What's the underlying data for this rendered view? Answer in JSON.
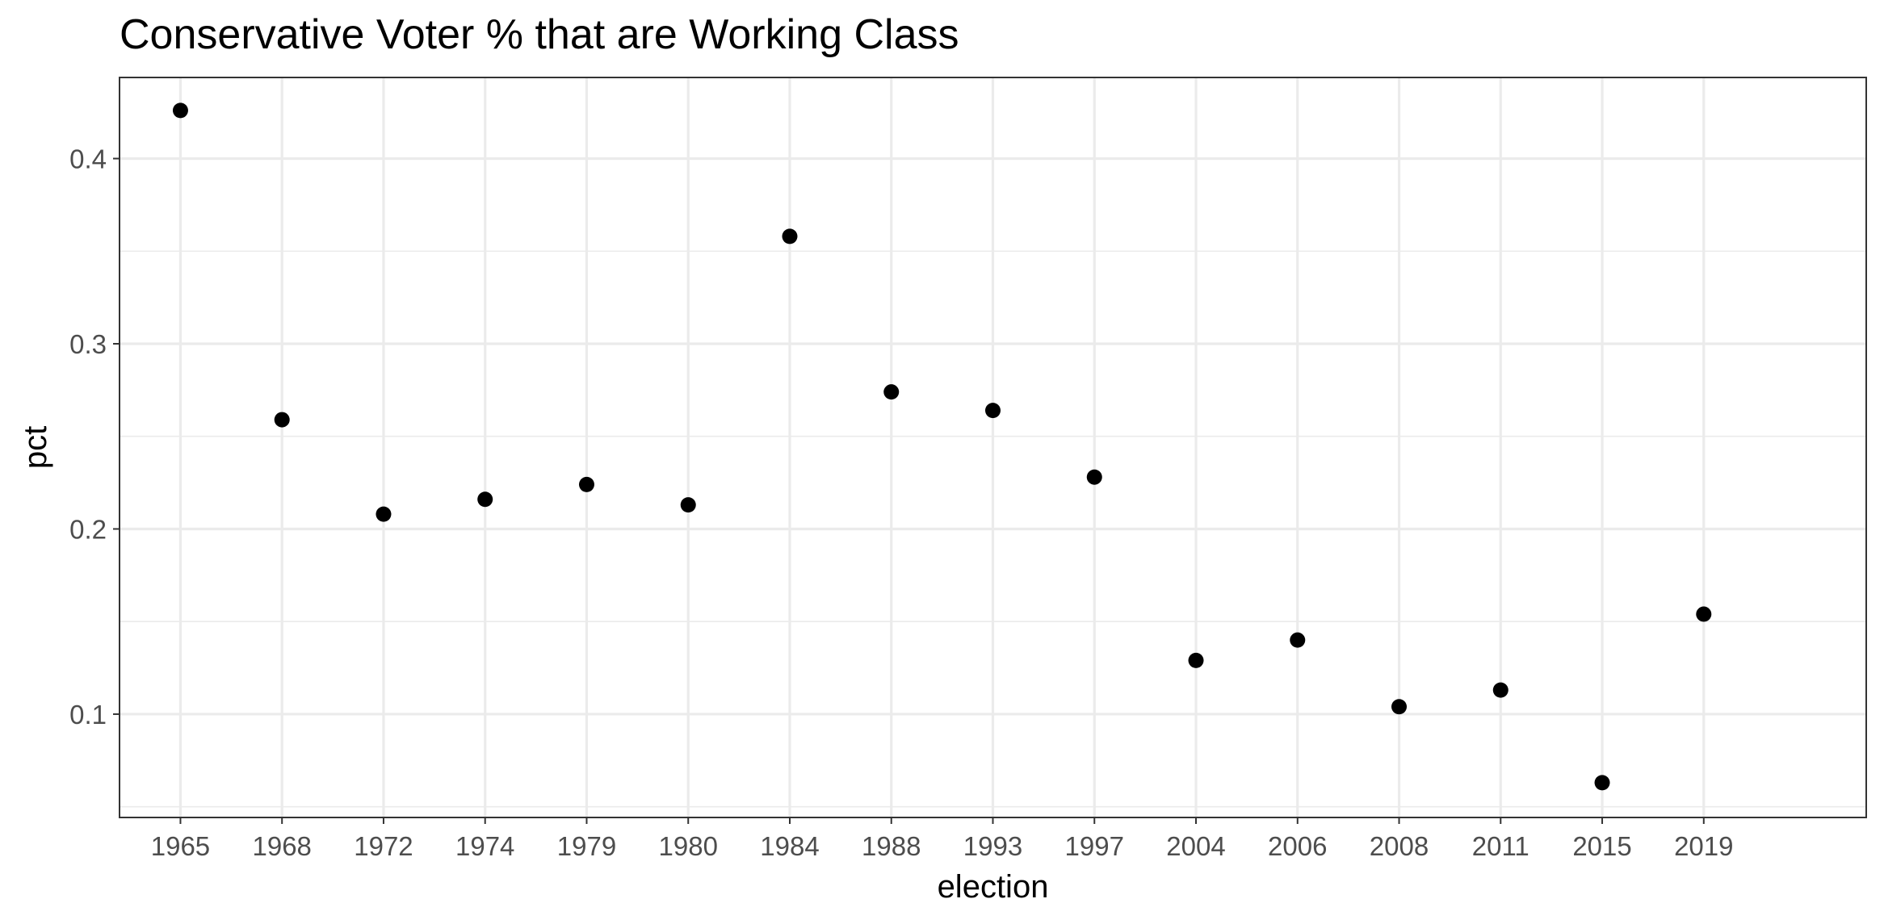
{
  "chart_data": {
    "type": "scatter",
    "title": "Conservative Voter % that are Working Class",
    "xlabel": "election",
    "ylabel": "pct",
    "categories": [
      "1965",
      "1968",
      "1972",
      "1974",
      "1979",
      "1980",
      "1984",
      "1988",
      "1993",
      "1997",
      "2004",
      "2006",
      "2008",
      "2011",
      "2015",
      "2019"
    ],
    "values": [
      0.426,
      0.259,
      0.208,
      0.216,
      0.224,
      0.213,
      0.358,
      0.274,
      0.264,
      0.228,
      0.129,
      0.14,
      0.104,
      0.113,
      0.063,
      0.154
    ],
    "ylim": [
      0.0442,
      0.4438
    ],
    "yticks": [
      0.1,
      0.2,
      0.3,
      0.4
    ],
    "ytick_labels": [
      "0.1",
      "0.2",
      "0.3",
      "0.4"
    ],
    "grid": true,
    "legend": "none",
    "colors": {
      "point": "#000000",
      "grid": "#ebebeb",
      "border": "#333333",
      "tick_text": "#4d4d4d"
    }
  }
}
